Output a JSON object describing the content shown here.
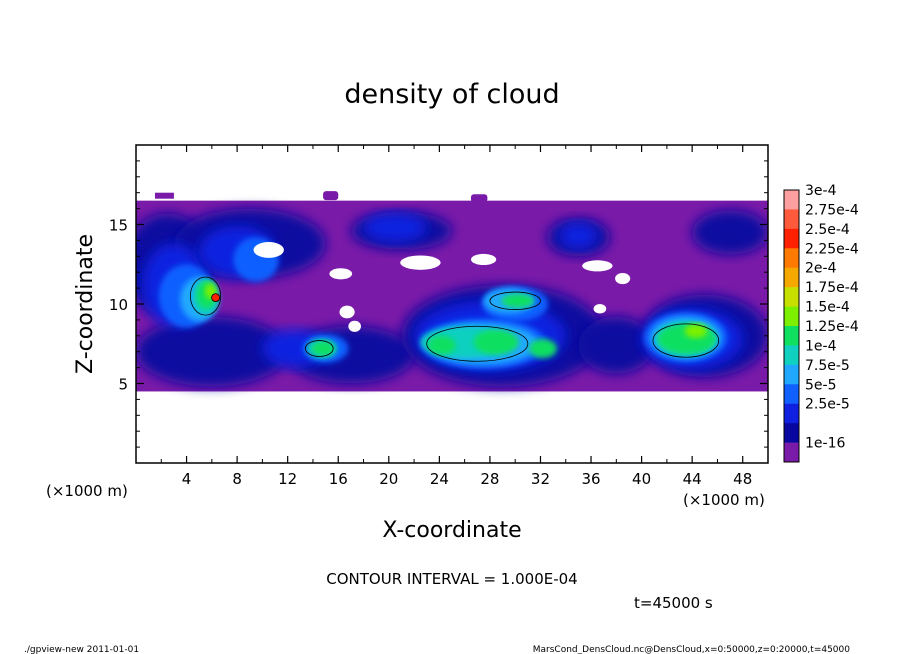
{
  "chart_data": {
    "type": "heatmap",
    "title": "density of cloud",
    "xlabel": "X-coordinate",
    "ylabel": "Z-coordinate",
    "x_unit_left": "(×1000 m)",
    "x_unit_right": "(×1000 m)",
    "xlim": [
      0,
      50
    ],
    "ylim": [
      0,
      20
    ],
    "x_ticks": [
      4,
      8,
      12,
      16,
      20,
      24,
      28,
      32,
      36,
      40,
      44,
      48
    ],
    "y_ticks": [
      5,
      10,
      15
    ],
    "colorbar": {
      "labels": [
        "3e-4",
        "2.75e-4",
        "2.5e-4",
        "2.25e-4",
        "2e-4",
        "1.75e-4",
        "1.5e-4",
        "1.25e-4",
        "1e-4",
        "7.5e-5",
        "5e-5",
        "2.5e-5",
        "1e-16"
      ],
      "colors": [
        "#ff9f9f",
        "#ff5a3c",
        "#ff2000",
        "#ff7a00",
        "#f5a800",
        "#c8e000",
        "#7cf000",
        "#10e060",
        "#10d0c0",
        "#20a8ff",
        "#1060ff",
        "#1020e0",
        "#0808a0",
        "#7a1aa8"
      ]
    },
    "cloud_band_z": [
      4.5,
      16.5
    ],
    "cloud_cores": [
      {
        "x": 5.5,
        "z": 10.5,
        "level": "1.5e-4"
      },
      {
        "x": 14.5,
        "z": 7.2,
        "level": "1.25e-4"
      },
      {
        "x": 27,
        "z": 7.5,
        "level": "1.25e-4"
      },
      {
        "x": 30,
        "z": 10.2,
        "level": "1e-4"
      },
      {
        "x": 43.5,
        "z": 7.7,
        "level": "1.5e-4"
      }
    ]
  },
  "contour_interval": "CONTOUR INTERVAL = 1.000E-04",
  "time_label": "t=45000 s",
  "footer_left": "./gpview-new  2011-01-01",
  "footer_right": "MarsCond_DensCloud.nc@DensCloud,x=0:50000,z=0:20000,t=45000"
}
